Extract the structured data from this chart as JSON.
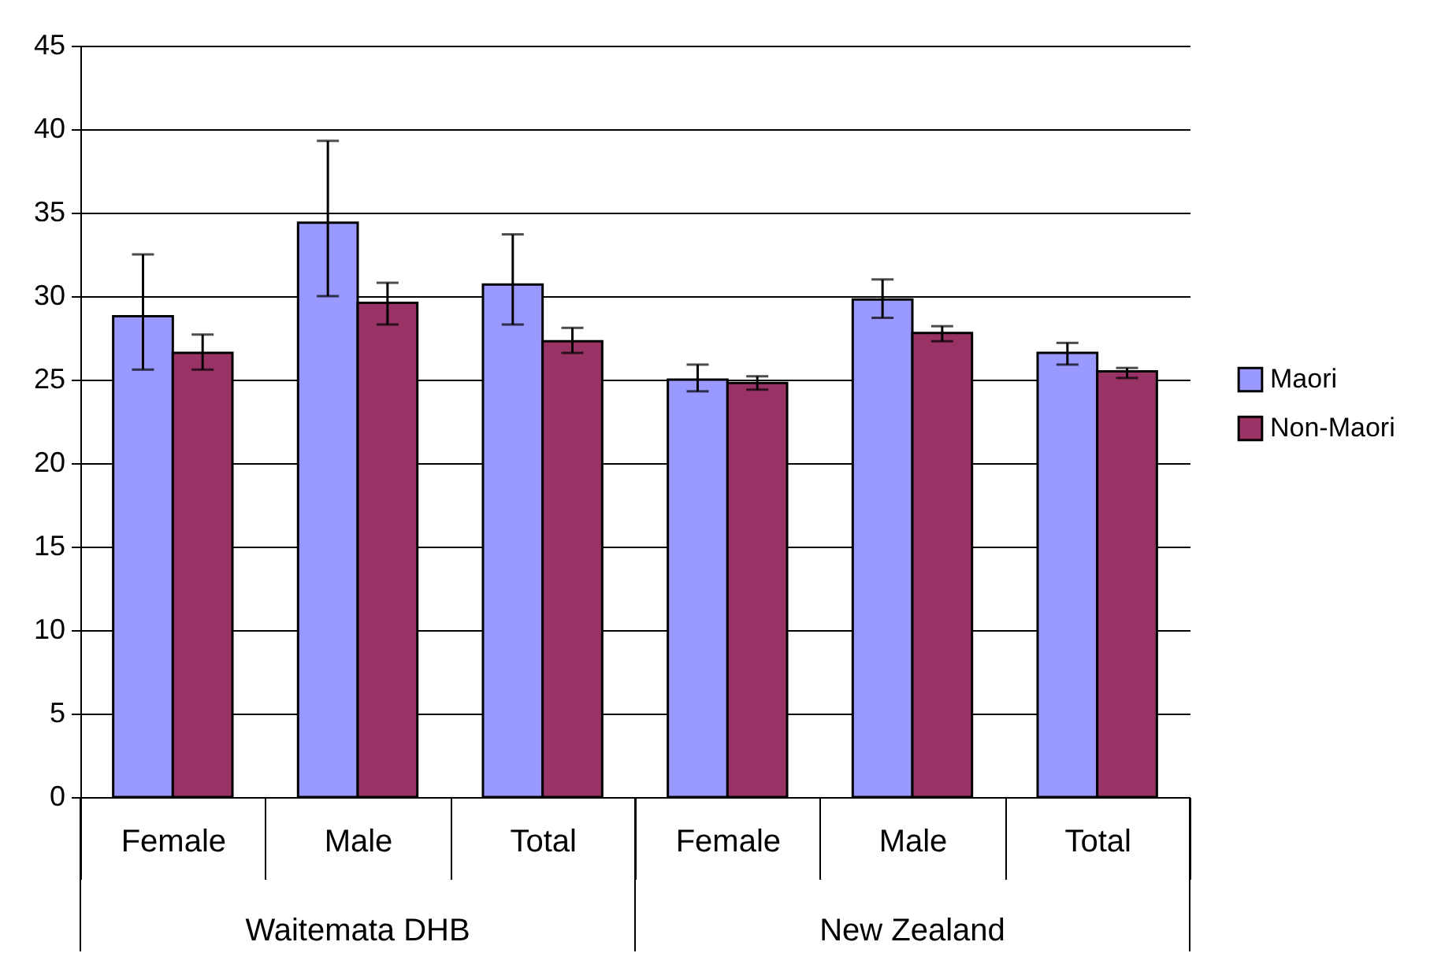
{
  "chart_data": {
    "type": "bar",
    "categories": [
      "Female",
      "Male",
      "Total",
      "Female",
      "Male",
      "Total"
    ],
    "annotations": [
      "Waitemata DHB",
      "New Zealand"
    ],
    "series": [
      {
        "name": "Maori",
        "color": "#9999ff",
        "values": [
          28.8,
          34.4,
          30.7,
          25.0,
          29.8,
          26.6
        ],
        "errors": [
          [
            25.6,
            32.5
          ],
          [
            30.0,
            39.3
          ],
          [
            28.3,
            33.7
          ],
          [
            24.3,
            25.9
          ],
          [
            28.7,
            31.0
          ],
          [
            25.9,
            27.2
          ]
        ]
      },
      {
        "name": "Non-Maori",
        "color": "#993366",
        "values": [
          26.6,
          29.6,
          27.3,
          24.8,
          27.8,
          25.5
        ],
        "errors": [
          [
            25.6,
            27.7
          ],
          [
            28.3,
            30.8
          ],
          [
            26.6,
            28.1
          ],
          [
            24.4,
            25.2
          ],
          [
            27.3,
            28.2
          ],
          [
            25.1,
            25.7
          ]
        ]
      }
    ],
    "ylim": [
      0,
      45
    ],
    "yticks": [
      0,
      5,
      10,
      15,
      20,
      25,
      30,
      35,
      40,
      45
    ],
    "grid": "y",
    "legend": "right"
  }
}
